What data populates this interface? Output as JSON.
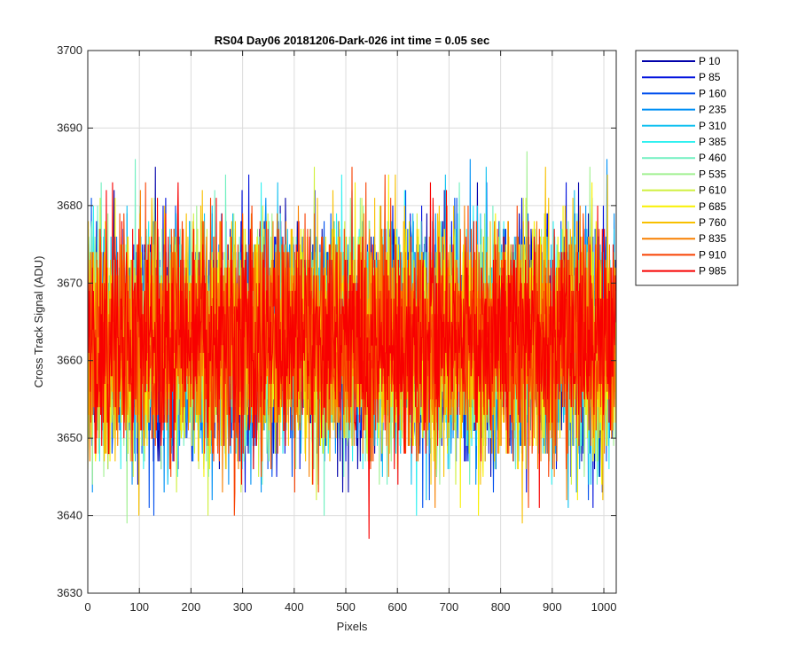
{
  "chart_data": {
    "type": "line",
    "title": "RS04 Day06 20181206-Dark-026 int time = 0.05 sec",
    "xlabel": "Pixels",
    "ylabel": "Cross Track Signal (ADU)",
    "xlim": [
      0,
      1024
    ],
    "ylim": [
      3630,
      3700
    ],
    "xticks": [
      0,
      100,
      200,
      300,
      400,
      500,
      600,
      700,
      800,
      900,
      1000
    ],
    "yticks": [
      3630,
      3640,
      3650,
      3660,
      3670,
      3680,
      3690,
      3700
    ],
    "grid": true,
    "legend_location": "outside-top-right",
    "noise_model": {
      "mean": 3663,
      "std": 7,
      "points_per_series": 1024
    },
    "series": [
      {
        "name": "P 10",
        "color": "#0000aa"
      },
      {
        "name": "P 85",
        "color": "#0010dd"
      },
      {
        "name": "P 160",
        "color": "#0050ee"
      },
      {
        "name": "P 235",
        "color": "#0090f5"
      },
      {
        "name": "P 310",
        "color": "#10c0f0"
      },
      {
        "name": "P 385",
        "color": "#30f0f0"
      },
      {
        "name": "P 460",
        "color": "#70f0c0"
      },
      {
        "name": "P 535",
        "color": "#a0f090"
      },
      {
        "name": "P 610",
        "color": "#d0f040"
      },
      {
        "name": "P 685",
        "color": "#f8f000"
      },
      {
        "name": "P 760",
        "color": "#f8c000"
      },
      {
        "name": "P 835",
        "color": "#f88000"
      },
      {
        "name": "P 910",
        "color": "#f84000"
      },
      {
        "name": "P 985",
        "color": "#f80000"
      }
    ]
  }
}
